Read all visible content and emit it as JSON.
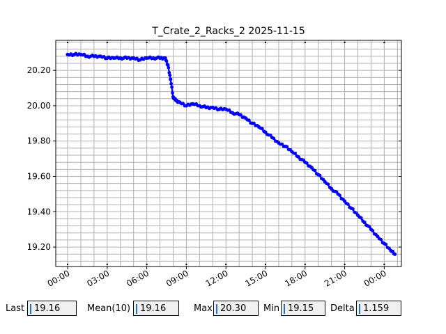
{
  "chart_data": {
    "type": "scatter",
    "title": "T_Crate_2_Racks_2 2025-11-15",
    "xlabel": "",
    "ylabel": "",
    "x_tick_labels": [
      "00:00",
      "03:00",
      "06:00",
      "09:00",
      "12:00",
      "15:00",
      "18:00",
      "21:00",
      "00:00"
    ],
    "x_tick_hours": [
      0,
      3,
      6,
      9,
      12,
      15,
      18,
      21,
      24
    ],
    "xlim_hours": [
      -0.9,
      25.3
    ],
    "y_tick_labels": [
      "19.20",
      "19.40",
      "19.60",
      "19.80",
      "20.00",
      "20.20"
    ],
    "y_tick_values": [
      19.2,
      19.4,
      19.6,
      19.8,
      20.0,
      20.2
    ],
    "ylim": [
      19.09,
      20.37
    ],
    "grid": true,
    "series": [
      {
        "color": "#0000ff",
        "x_hours": [
          0.0,
          0.5,
          1.0,
          1.5,
          2.0,
          2.5,
          3.0,
          3.5,
          4.0,
          4.5,
          5.0,
          5.5,
          6.0,
          6.5,
          7.0,
          7.4,
          7.6,
          7.8,
          8.0,
          8.2,
          8.5,
          9.0,
          9.5,
          10.0,
          10.5,
          11.0,
          11.5,
          12.0,
          12.5,
          13.0,
          13.5,
          14.0,
          14.5,
          15.0,
          15.5,
          16.0,
          16.5,
          17.0,
          17.5,
          18.0,
          18.5,
          19.0,
          19.5,
          20.0,
          20.5,
          21.0,
          21.5,
          22.0,
          22.5,
          23.0,
          23.5,
          24.0,
          24.5,
          24.8
        ],
        "y": [
          20.29,
          20.29,
          20.29,
          20.28,
          20.28,
          20.28,
          20.27,
          20.27,
          20.27,
          20.27,
          20.27,
          20.26,
          20.27,
          20.27,
          20.27,
          20.27,
          20.23,
          20.15,
          20.05,
          20.03,
          20.02,
          20.0,
          20.01,
          20.0,
          19.99,
          19.99,
          19.98,
          19.98,
          19.96,
          19.95,
          19.93,
          19.9,
          19.88,
          19.85,
          19.82,
          19.79,
          19.77,
          19.74,
          19.71,
          19.68,
          19.65,
          19.61,
          19.57,
          19.53,
          19.5,
          19.46,
          19.42,
          19.38,
          19.34,
          19.3,
          19.26,
          19.22,
          19.18,
          19.16
        ]
      }
    ]
  },
  "stats": [
    {
      "label": "Last",
      "value": "19.16"
    },
    {
      "label": "Mean(10)",
      "value": "19.16"
    },
    {
      "label": "Max",
      "value": "20.30"
    },
    {
      "label": "Min",
      "value": "19.15"
    },
    {
      "label": "Delta",
      "value": "1.159"
    }
  ]
}
